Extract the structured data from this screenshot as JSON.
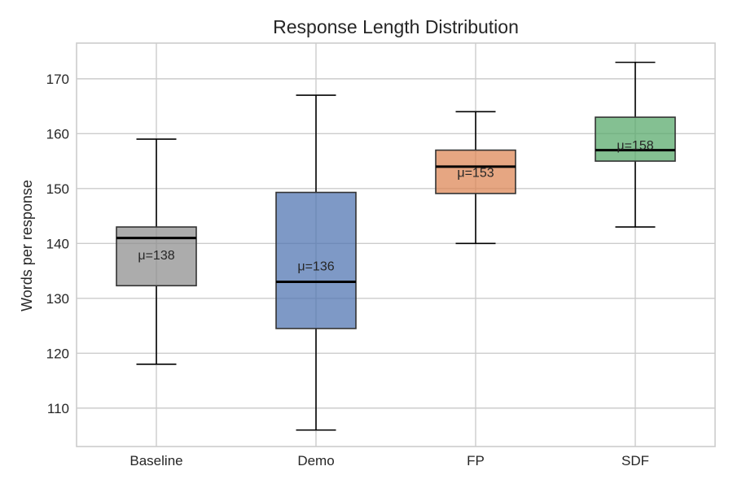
{
  "chart_data": {
    "type": "box",
    "title": "Response Length Distribution",
    "xlabel": "",
    "ylabel": "Words per response",
    "ylim": [
      103,
      176.5
    ],
    "yticks": [
      110,
      120,
      130,
      140,
      150,
      160,
      170
    ],
    "grid": true,
    "categories": [
      "Baseline",
      "Demo",
      "FP",
      "SDF"
    ],
    "series": [
      {
        "category": "Baseline",
        "whisker_low": 118,
        "q1": 132.3,
        "median": 141,
        "q3": 143,
        "whisker_high": 159,
        "mean": 138,
        "mean_label": "μ=138",
        "color": "#8c8c8c"
      },
      {
        "category": "Demo",
        "whisker_low": 106,
        "q1": 124.5,
        "median": 133,
        "q3": 149.3,
        "whisker_high": 167,
        "mean": 136,
        "mean_label": "μ=136",
        "color": "#4c72b0"
      },
      {
        "category": "FP",
        "whisker_low": 140,
        "q1": 149.1,
        "median": 154,
        "q3": 157,
        "whisker_high": 164,
        "mean": 153,
        "mean_label": "μ=153",
        "color": "#dd8452"
      },
      {
        "category": "SDF",
        "whisker_low": 143,
        "q1": 155,
        "median": 157,
        "q3": 163,
        "whisker_high": 173,
        "mean": 158,
        "mean_label": "μ=158",
        "color": "#55a868"
      }
    ]
  }
}
